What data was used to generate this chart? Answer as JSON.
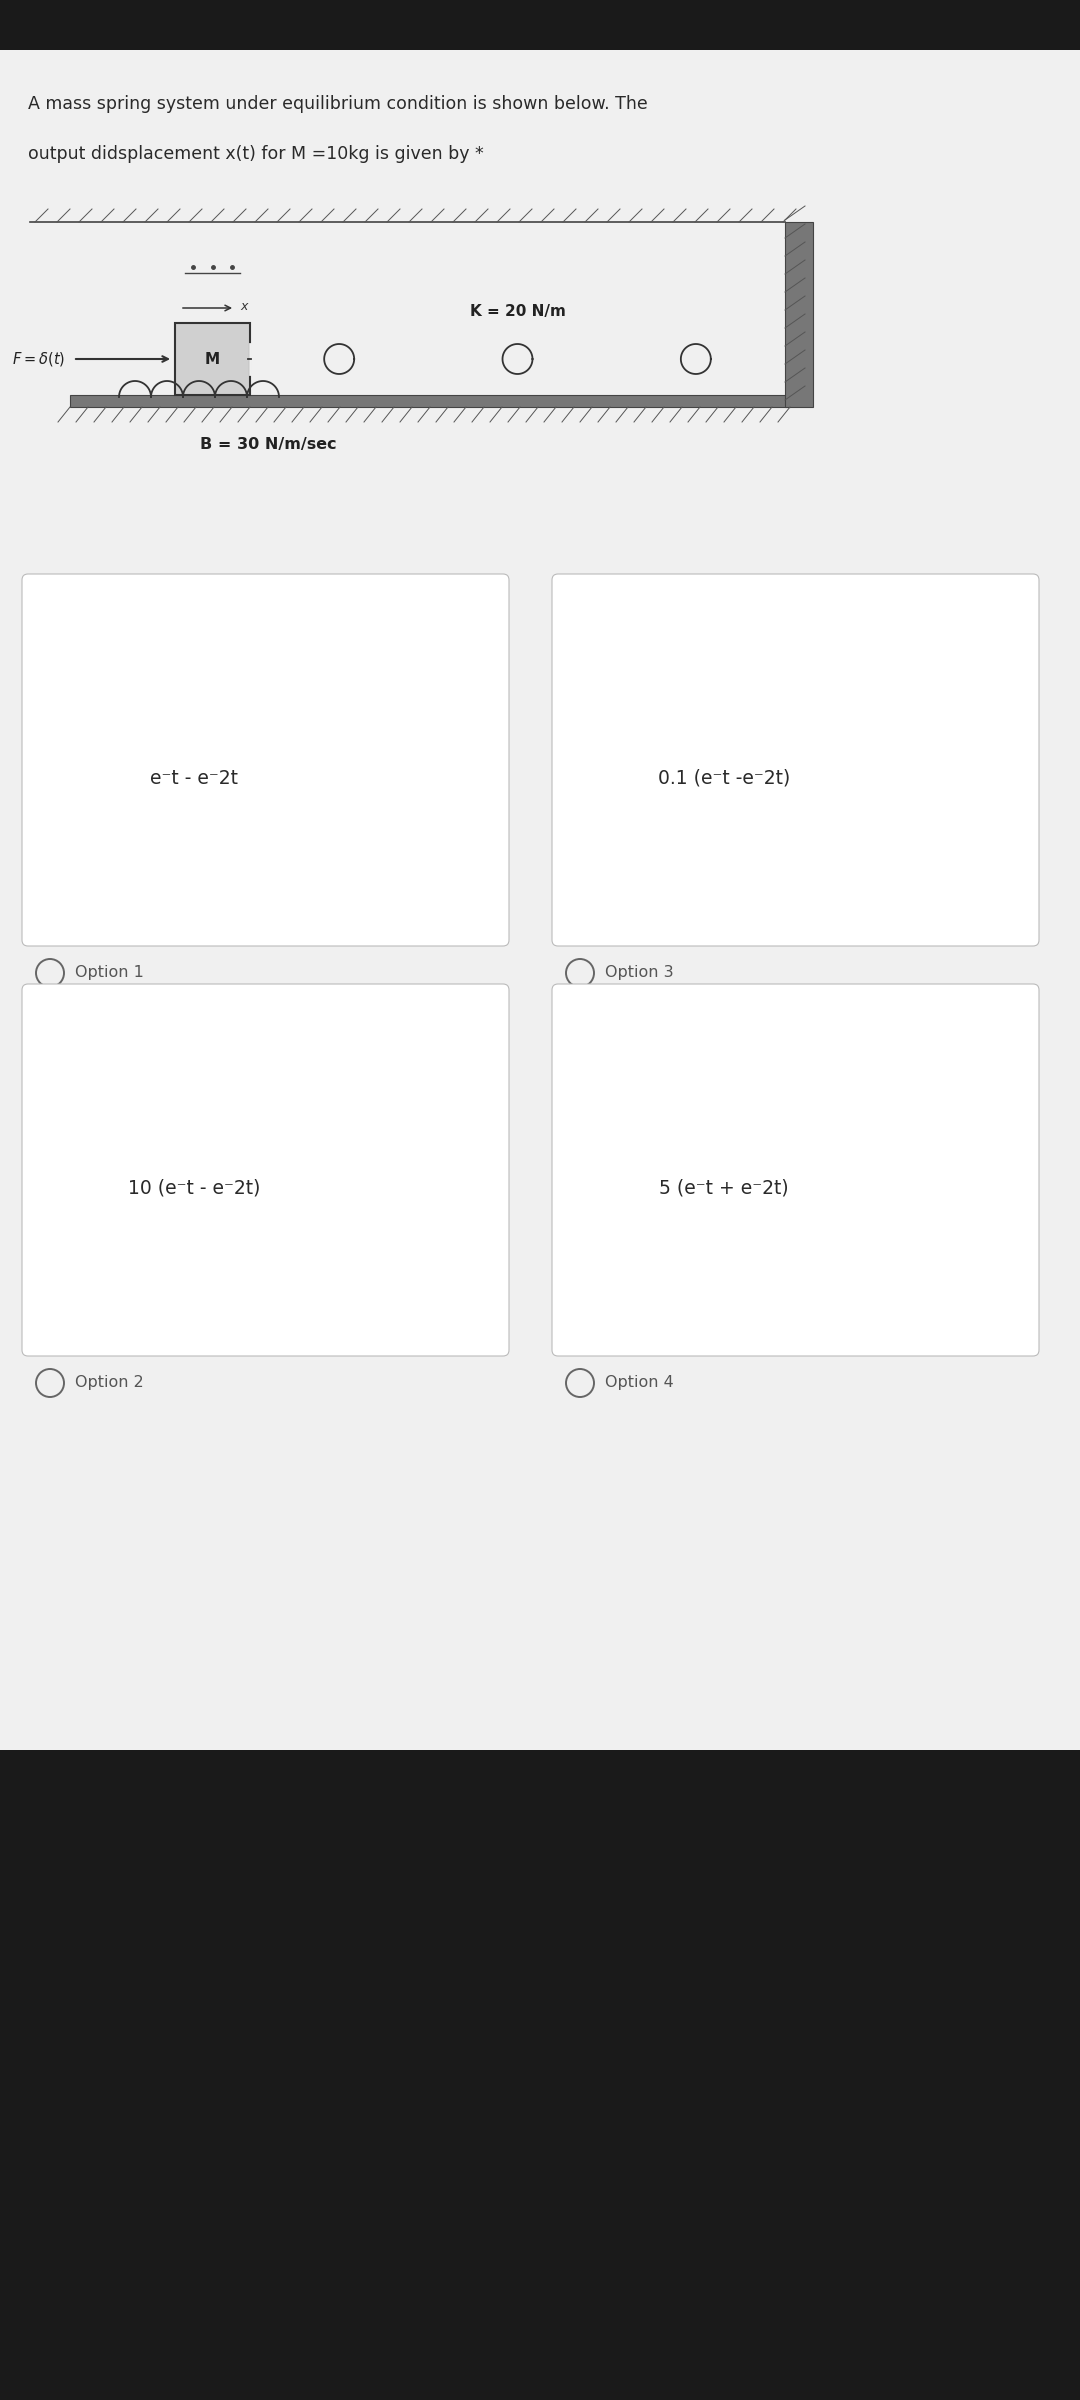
{
  "bg_color": "#1a1a1a",
  "content_bg": "#f0f0f0",
  "white_bg": "#ffffff",
  "question_text_line1": "A mass spring system under equilibrium condition is shown below. The",
  "question_text_line2": "output didsplacement x(t) for M =10kg is given by *",
  "K_label": "K = 20 N/m",
  "B_label": "B = 30 N/m/sec",
  "M_label": "M",
  "option1_text": "e⁻t - e⁻2t",
  "option2_text": "0.1 (e⁻t -e⁻2t)",
  "option3_text": "10 (e⁻t - e⁻2t)",
  "option4_text": "5 (e⁻t + e⁻2t)",
  "option1_label": "Option 1",
  "option2_label": "Option 3",
  "option3_label": "Option 2",
  "option4_label": "Option 4",
  "text_color": "#2a2a2a",
  "box_border_color": "#bbbbbb",
  "box_fill_color": "#ffffff",
  "option_label_color": "#555555",
  "diagram_line_color": "#333333",
  "diagram_fill_color": "#cccccc",
  "wall_color": "#777777"
}
